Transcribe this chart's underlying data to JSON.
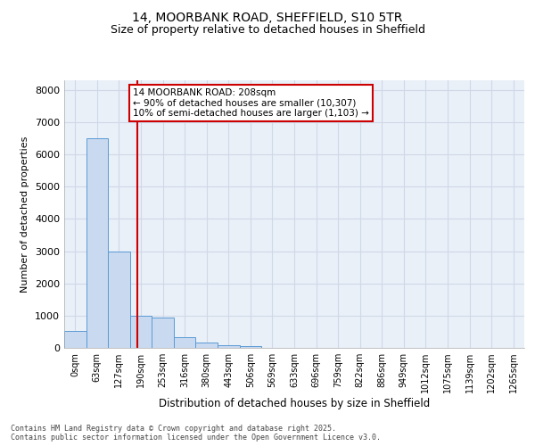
{
  "title_line1": "14, MOORBANK ROAD, SHEFFIELD, S10 5TR",
  "title_line2": "Size of property relative to detached houses in Sheffield",
  "xlabel": "Distribution of detached houses by size in Sheffield",
  "ylabel": "Number of detached properties",
  "annotation_title": "14 MOORBANK ROAD: 208sqm",
  "annotation_line2": "← 90% of detached houses are smaller (10,307)",
  "annotation_line3": "10% of semi-detached houses are larger (1,103) →",
  "footer_line1": "Contains HM Land Registry data © Crown copyright and database right 2025.",
  "footer_line2": "Contains public sector information licensed under the Open Government Licence v3.0.",
  "categories": [
    "0sqm",
    "63sqm",
    "127sqm",
    "190sqm",
    "253sqm",
    "316sqm",
    "380sqm",
    "443sqm",
    "506sqm",
    "569sqm",
    "633sqm",
    "696sqm",
    "759sqm",
    "822sqm",
    "886sqm",
    "949sqm",
    "1012sqm",
    "1075sqm",
    "1139sqm",
    "1202sqm",
    "1265sqm"
  ],
  "bar_values": [
    530,
    6500,
    2980,
    1000,
    950,
    330,
    160,
    90,
    55,
    0,
    0,
    0,
    0,
    0,
    0,
    0,
    0,
    0,
    0,
    0,
    0
  ],
  "bar_color": "#c9d9f0",
  "bar_edgecolor": "#5b9bd5",
  "vline_x": 2.82,
  "vline_color": "#cc0000",
  "annotation_box_color": "#cc0000",
  "ylim": [
    0,
    8300
  ],
  "yticks": [
    0,
    1000,
    2000,
    3000,
    4000,
    5000,
    6000,
    7000,
    8000
  ],
  "grid_color": "#d0d8e8",
  "bg_color": "#eaf0f8",
  "title_fontsize": 10,
  "subtitle_fontsize": 9
}
